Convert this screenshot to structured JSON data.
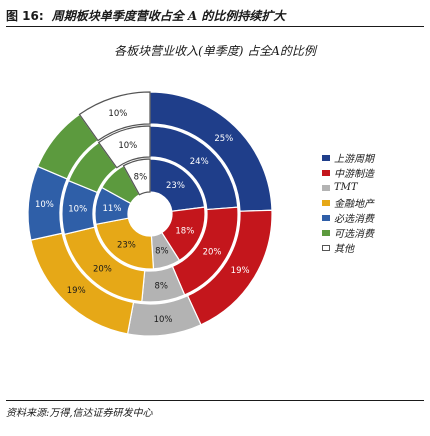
{
  "figure": {
    "label": "图 16:",
    "caption": "周期板块单季度营收占全 A 的比例持续扩大",
    "source": "资料来源:万得,信达证券研发中心"
  },
  "chart_data": {
    "type": "pie",
    "title": "各板块营业收入(单季度) 占全A的比例",
    "legend_position": "right",
    "categories": [
      "上游周期",
      "中游制造",
      "TMT",
      "金融地产",
      "必选消费",
      "可选消费",
      "其他"
    ],
    "colors": [
      "#1f3e8a",
      "#c4161c",
      "#b3b3b3",
      "#e6a817",
      "#2f5fa8",
      "#5c9a3e",
      "#ffffff"
    ],
    "rings": [
      {
        "name": "outer",
        "values": [
          25,
          19,
          10,
          19,
          10,
          9,
          10
        ],
        "labels": [
          "25%",
          "19%",
          "10%",
          "19%",
          "10%",
          "",
          "10%"
        ]
      },
      {
        "name": "middle",
        "values": [
          24,
          20,
          8,
          20,
          10,
          9,
          10
        ],
        "labels": [
          "24%",
          "20%",
          "8%",
          "20%",
          "10%",
          "",
          "10%"
        ]
      },
      {
        "name": "inner",
        "values": [
          23,
          18,
          8,
          23,
          11,
          9,
          8
        ],
        "labels": [
          "23%",
          "18%",
          "8%",
          "23%",
          "11%",
          "",
          "8%"
        ]
      }
    ]
  }
}
